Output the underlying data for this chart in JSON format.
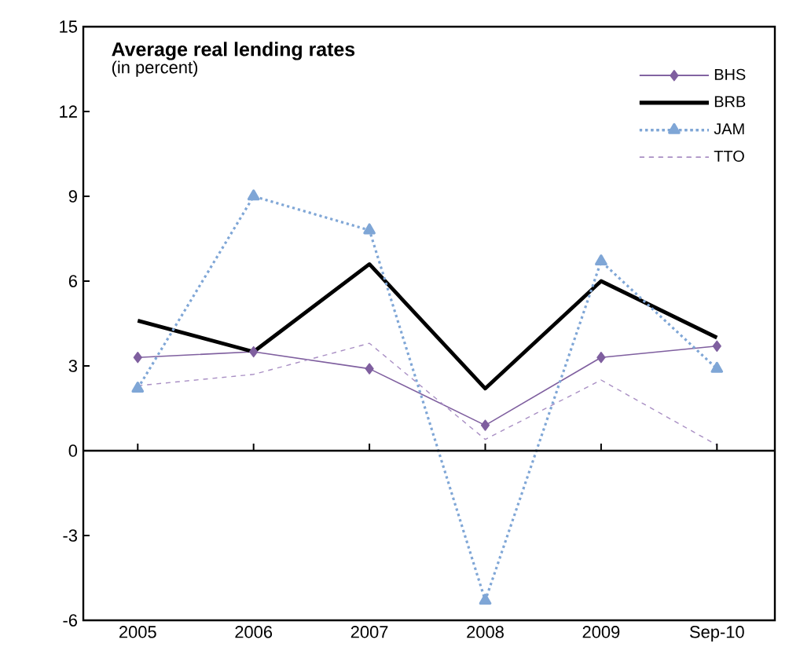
{
  "chart_data": {
    "type": "line",
    "title": "Average real lending rates",
    "subtitle": "(in percent)",
    "categories": [
      "2005",
      "2006",
      "2007",
      "2008",
      "2009",
      "Sep-10"
    ],
    "series": [
      {
        "name": "BHS",
        "color": "#7f5f9f",
        "marker": "diamond",
        "line_style": "solid",
        "values": [
          3.3,
          3.5,
          2.9,
          0.9,
          3.3,
          3.7
        ]
      },
      {
        "name": "BRB",
        "color": "#000000",
        "marker": "none",
        "line_style": "solid",
        "values": [
          4.6,
          3.5,
          6.6,
          2.2,
          6.0,
          4.0
        ]
      },
      {
        "name": "JAM",
        "color": "#7fa6d6",
        "marker": "triangle",
        "line_style": "dotted",
        "values": [
          2.2,
          9.0,
          7.8,
          -5.3,
          6.7,
          2.9
        ]
      },
      {
        "name": "TTO",
        "color": "#a98fc4",
        "marker": "none",
        "line_style": "dashed",
        "values": [
          2.3,
          2.7,
          3.8,
          0.4,
          2.5,
          0.2
        ]
      }
    ],
    "ylim": [
      -6,
      15
    ],
    "yticks": [
      -6,
      -3,
      0,
      3,
      6,
      9,
      12,
      15
    ],
    "ref_lines": [
      {
        "axis": "y",
        "value": 0,
        "color": "#000000"
      }
    ],
    "legend": "top right"
  }
}
